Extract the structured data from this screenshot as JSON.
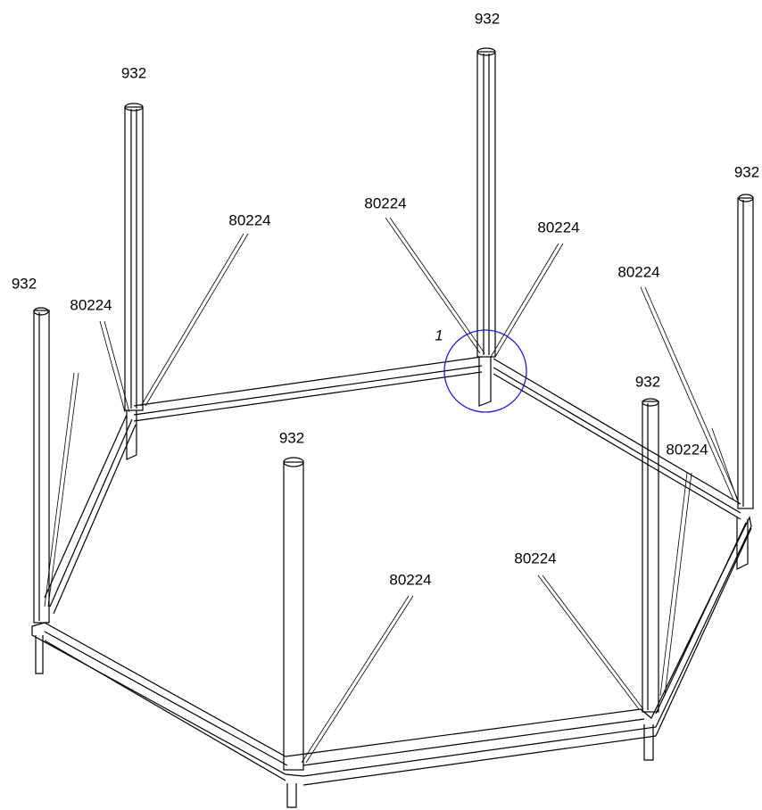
{
  "labels": [
    {
      "text": "932"
    },
    {
      "text": "932"
    },
    {
      "text": "932"
    },
    {
      "text": "932"
    },
    {
      "text": "932"
    },
    {
      "text": "932"
    },
    {
      "text": "80224"
    },
    {
      "text": "80224"
    },
    {
      "text": "80224"
    },
    {
      "text": "80224"
    },
    {
      "text": "80224"
    },
    {
      "text": "80224"
    },
    {
      "text": "80224"
    },
    {
      "text": "80224"
    }
  ],
  "detail": {
    "text": "1"
  }
}
